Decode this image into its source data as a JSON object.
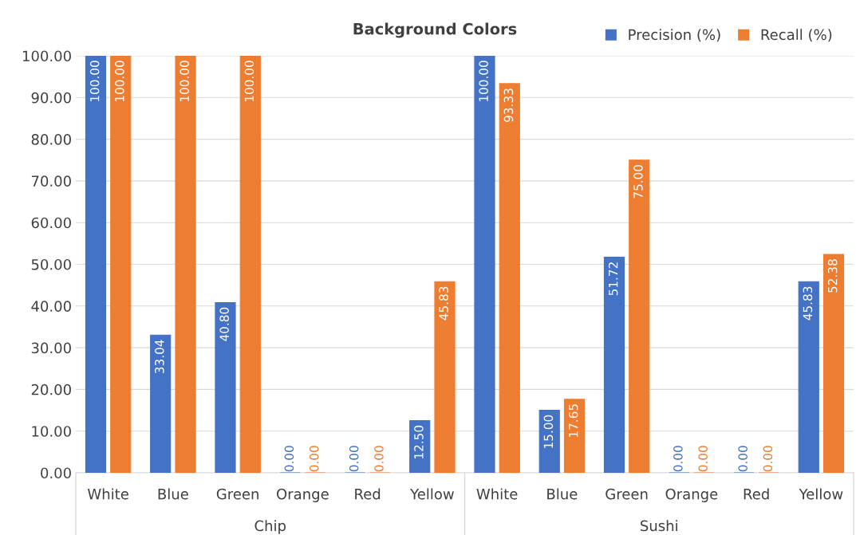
{
  "chart_data": {
    "type": "bar",
    "title": "Background Colors",
    "categories": [
      "White",
      "Blue",
      "Green",
      "Orange",
      "Red",
      "Yellow",
      "White",
      "Blue",
      "Green",
      "Orange",
      "Red",
      "Yellow"
    ],
    "series": [
      {
        "name": "Precision (%)",
        "color": "#4472c4",
        "values": [
          100,
          33.04,
          40.8,
          0,
          0,
          12.5,
          100,
          15,
          51.72,
          0,
          0,
          45.83
        ],
        "value_labels": [
          "100.00",
          "33.04",
          "40.80",
          "0.00",
          "0.00",
          "12.50",
          "100.00",
          "15.00",
          "51.72",
          "0.00",
          "0.00",
          "45.83"
        ]
      },
      {
        "name": "Recall (%)",
        "color": "#ed7d31",
        "values": [
          100,
          100,
          100,
          0,
          0,
          45.83,
          93.33,
          17.65,
          75,
          0,
          0,
          52.38
        ],
        "value_labels": [
          "100.00",
          "100.00",
          "100.00",
          "0.00",
          "0.00",
          "45.83",
          "93.33",
          "17.65",
          "75.00",
          "0.00",
          "0.00",
          "52.38"
        ]
      }
    ],
    "annotations": [
      "Chip",
      "Sushi"
    ],
    "ylim": [
      0,
      100
    ],
    "yticks": [
      {
        "value": 0,
        "label": "0.00"
      },
      {
        "value": 10,
        "label": "10.00"
      },
      {
        "value": 20,
        "label": "20.00"
      },
      {
        "value": 30,
        "label": "30.00"
      },
      {
        "value": 40,
        "label": "40.00"
      },
      {
        "value": 50,
        "label": "50.00"
      },
      {
        "value": 60,
        "label": "60.00"
      },
      {
        "value": 70,
        "label": "70.00"
      },
      {
        "value": 80,
        "label": "80.00"
      },
      {
        "value": 90,
        "label": "90.00"
      },
      {
        "value": 100,
        "label": "100.00"
      }
    ],
    "grid": "y",
    "legend": "top right"
  }
}
